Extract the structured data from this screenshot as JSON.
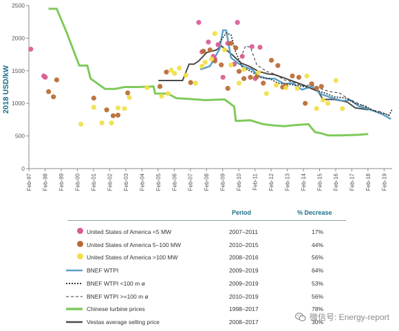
{
  "chart_data": {
    "type": "line",
    "ylabel": "2018 USD/kW",
    "xlabel": "",
    "ylim": [
      0,
      2500
    ],
    "yticks": [
      "0",
      "500",
      "1000",
      "1500",
      "2000",
      "2500"
    ],
    "xlim": [
      1997.08,
      2019.58
    ],
    "xticks": [
      "Feb-97",
      "Feb-98",
      "Feb-99",
      "Feb-00",
      "Feb-01",
      "Feb-02",
      "Feb-03",
      "Feb-04",
      "Feb-05",
      "Feb-06",
      "Feb-07",
      "Feb-08",
      "Feb-09",
      "Feb-10",
      "Feb-11",
      "Feb-12",
      "Feb-13",
      "Feb-14",
      "Feb-15",
      "Feb-16",
      "Feb-17",
      "Feb-18",
      "Feb-19"
    ],
    "grid": false,
    "lines": [
      {
        "name": "Chinese turbine prices",
        "color": "#7ec95a",
        "width": 3,
        "dash": "",
        "x": [
          1998.3,
          1998.8,
          1999.4,
          2000.2,
          2000.7,
          2000.9,
          2001.8,
          2002.4,
          2003.0,
          2003.8,
          2004.8,
          2004.9,
          2005.7,
          2006.2,
          2006.9,
          2008.0,
          2009.2,
          2009.8,
          2009.9,
          2010.8,
          2011.6,
          2012.3,
          2012.9,
          2013.7,
          2014.4,
          2014.8,
          2015.2,
          2015.6,
          2016.4,
          2017.1,
          2017.6,
          2018.1
        ],
        "y": [
          2450,
          2450,
          2100,
          1580,
          1580,
          1380,
          1220,
          1220,
          1250,
          1250,
          1260,
          1150,
          1150,
          1080,
          1070,
          1050,
          1060,
          950,
          730,
          740,
          680,
          660,
          650,
          670,
          680,
          560,
          540,
          510,
          510,
          515,
          520,
          530
        ]
      },
      {
        "name": "Vestas average selling price",
        "color": "#4a4a4a",
        "width": 2,
        "dash": "",
        "x": [
          2005.1,
          2006.6,
          2007.0,
          2007.3,
          2007.6,
          2008.1,
          2008.7,
          2009.0,
          2009.7,
          2010.2,
          2010.8,
          2011.3,
          2011.9,
          2012.3,
          2013.0,
          2014.2,
          2015.0,
          2015.3,
          2016.0,
          2016.8,
          2017.3,
          2017.9,
          2018.1
        ],
        "y": [
          1350,
          1350,
          1600,
          1600,
          1650,
          1780,
          1820,
          1880,
          1740,
          1620,
          1560,
          1490,
          1450,
          1440,
          1380,
          1270,
          1180,
          1060,
          1060,
          1020,
          930,
          910,
          900
        ]
      },
      {
        "name": "BNEF WTPI",
        "color": "#5aa0c8",
        "width": 2.5,
        "dash": "",
        "x": [
          2007.7,
          2008.3,
          2008.9,
          2009.1,
          2009.3,
          2009.6,
          2010.0,
          2010.4,
          2010.9,
          2011.3,
          2011.8,
          2012.3,
          2012.9,
          2013.4,
          2014.0,
          2014.6,
          2015.2,
          2015.9,
          2016.5,
          2017.0,
          2017.5,
          2018.0,
          2018.5,
          2019.0,
          2019.5
        ],
        "y": [
          1520,
          1570,
          1840,
          2120,
          2120,
          1700,
          1620,
          1560,
          1520,
          1420,
          1380,
          1380,
          1300,
          1310,
          1210,
          1260,
          1140,
          1080,
          1040,
          1050,
          960,
          920,
          880,
          830,
          760
        ]
      },
      {
        "name": "BNEF WTPI <100 m ø",
        "color": "#333333",
        "width": 1.8,
        "dash": "2,2",
        "x": [
          2008.8,
          2009.3,
          2009.6,
          2009.9,
          2010.3,
          2010.9,
          2011.4,
          2012.0,
          2012.5,
          2013.0,
          2013.6,
          2014.3,
          2014.9,
          2015.5,
          2016.0,
          2016.7,
          2017.3,
          2017.9,
          2018.5,
          2019.0,
          2019.4,
          2019.6
        ],
        "y": [
          1900,
          2080,
          2050,
          1780,
          1560,
          1480,
          1400,
          1380,
          1310,
          1300,
          1280,
          1250,
          1200,
          1150,
          1100,
          1080,
          1000,
          960,
          880,
          850,
          820,
          920
        ]
      },
      {
        "name": "BNEF WTPI >=100 m ø",
        "color": "#333333",
        "width": 1,
        "dash": "4,3",
        "x": [
          2010.2,
          2010.5,
          2010.8,
          2011.2,
          2011.8,
          2012.3,
          2012.9,
          2013.4,
          2014.0,
          2014.6,
          2015.2,
          2015.7,
          2016.3,
          2016.8,
          2017.3,
          2017.8,
          2018.3,
          2018.9,
          2019.5
        ],
        "y": [
          1700,
          1880,
          1860,
          1590,
          1490,
          1450,
          1360,
          1330,
          1270,
          1280,
          1220,
          1180,
          1160,
          1080,
          1020,
          960,
          900,
          870,
          800
        ]
      }
    ],
    "scatter": [
      {
        "name": "United States of America <5 MW",
        "color": "#d95b92",
        "x": [
          1997.2,
          1998.0,
          1998.1,
          2007.6,
          2007.8,
          2008.2,
          2008.5,
          2008.6,
          2008.8,
          2009.1,
          2009.4,
          2009.8,
          2010.0,
          2010.3,
          2010.9,
          2011.1,
          2011.4
        ],
        "y": [
          1830,
          1420,
          1400,
          2240,
          1790,
          1940,
          1720,
          1680,
          1900,
          1400,
          1920,
          1600,
          2240,
          1720,
          1870,
          1380,
          1860
        ]
      },
      {
        "name": "United States of America 5–100 MW",
        "color": "#b86a32",
        "x": [
          1998.3,
          1998.6,
          1998.8,
          2001.1,
          2001.9,
          2002.3,
          2002.6,
          2003.2,
          2005.2,
          2005.6,
          2007.1,
          2007.9,
          2008.3,
          2008.6,
          2009.0,
          2009.4,
          2009.6,
          2009.9,
          2010.1,
          2010.4,
          2010.8,
          2011.2,
          2011.6,
          2012.1,
          2012.5,
          2012.8,
          2013.0,
          2013.4,
          2013.8,
          2014.2,
          2014.6,
          2014.9,
          2015.2
        ],
        "y": [
          1180,
          1100,
          1360,
          1080,
          900,
          810,
          820,
          1160,
          1260,
          1480,
          1320,
          1800,
          1820,
          1650,
          1590,
          1230,
          1920,
          1850,
          1490,
          1380,
          1400,
          1410,
          1310,
          1660,
          1580,
          1250,
          1270,
          1420,
          1400,
          1000,
          1300,
          1230,
          1260
        ]
      },
      {
        "name": "United States of America >100 MW",
        "color": "#f0e04a",
        "x": [
          2000.3,
          2001.1,
          2001.6,
          2002.2,
          2002.6,
          2003.0,
          2003.3,
          2004.4,
          2005.3,
          2005.7,
          2005.9,
          2006.1,
          2006.4,
          2006.8,
          2007.4,
          2007.8,
          2008.0,
          2008.4,
          2008.6,
          2009.2,
          2009.6,
          2010.1,
          2010.4,
          2011.3,
          2011.8,
          2012.4,
          2013.0,
          2013.7,
          2014.3,
          2014.9,
          2015.3,
          2015.6,
          2016.1,
          2016.5
        ],
        "y": [
          680,
          940,
          700,
          700,
          930,
          920,
          1090,
          1240,
          1110,
          1150,
          1510,
          1460,
          1540,
          1430,
          1310,
          1570,
          1630,
          1680,
          2070,
          1820,
          1590,
          1310,
          1520,
          1470,
          1150,
          1280,
          1240,
          1230,
          1420,
          920,
          1050,
          1000,
          1350,
          920
        ]
      }
    ]
  },
  "legend": {
    "header_period": "Period",
    "header_pct": "% Decrease",
    "rows": [
      {
        "label": "United States of America  <5 MW",
        "period": "2007–2011",
        "pct": "17%"
      },
      {
        "label": "United States of America  5–100 MW",
        "period": "2010–2015",
        "pct": "44%"
      },
      {
        "label": "United States of America  >100 MW",
        "period": "2008–2016",
        "pct": "56%"
      },
      {
        "label": "BNEF WTPI",
        "period": "2009–2019",
        "pct": "64%"
      },
      {
        "label": "BNEF WTPI <100 m ø",
        "period": "2009–2019",
        "pct": "53%"
      },
      {
        "label": "BNEF WTPI >=100 m ø",
        "period": "2010–2019",
        "pct": "56%"
      },
      {
        "label": "Chinese turbine prices",
        "period": "1998–2017",
        "pct": "78%"
      },
      {
        "label": "Vestas average selling price",
        "period": "2008–2017",
        "pct": "30%"
      }
    ]
  },
  "watermark": {
    "text": "微信号: Energy-report",
    "icon": "wechat-icon"
  },
  "colors": {
    "axis": "#8a8a8a",
    "ylabel": "#1a6f86",
    "head": "#1a6f86"
  }
}
